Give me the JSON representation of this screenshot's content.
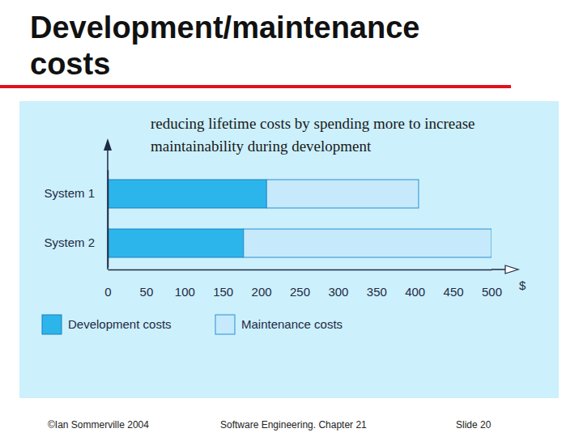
{
  "title": "Development/maintenance costs",
  "footer": [
    "©Ian Sommerville 2004",
    "Software Engineering. Chapter 21",
    "Slide 20"
  ],
  "chart_data": {
    "type": "bar",
    "orientation": "horizontal",
    "stacked": true,
    "title": "reducing lifetime costs by spending more to increase maintainability during development",
    "categories": [
      "System 1",
      "System 2"
    ],
    "series": [
      {
        "name": "Development costs",
        "color": "#2cb5ea",
        "values": [
          207,
          177
        ]
      },
      {
        "name": "Maintenance costs",
        "color": "#c6eafb",
        "values": [
          198,
          323
        ]
      }
    ],
    "xlabel": "$",
    "xlim": [
      0,
      500
    ],
    "xticks": [
      0,
      50,
      100,
      150,
      200,
      250,
      300,
      350,
      400,
      450,
      500
    ],
    "legend": "bottom-left"
  }
}
